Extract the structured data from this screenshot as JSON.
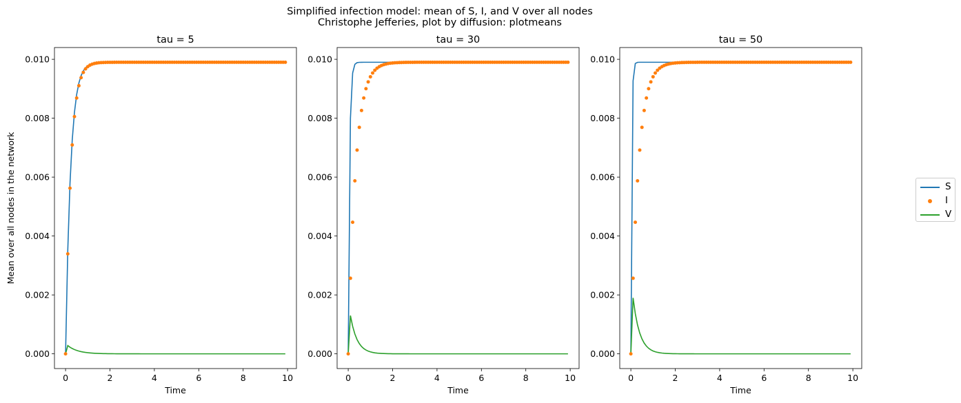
{
  "figure": {
    "title_line1": "Simplified infection model: mean of S, I, and V over all nodes",
    "title_line2": "Christophe Jefferies, plot by diffusion: plotmeans"
  },
  "legend": {
    "placement": "right",
    "entries": [
      "S",
      "I",
      "V"
    ]
  },
  "colors": {
    "S": "#1f77b4",
    "I": "#ff7f0e",
    "V": "#2ca02c"
  },
  "chart_data": [
    {
      "type": "line",
      "title": "tau = 5",
      "xlabel": "Time",
      "ylabel": "Mean over all nodes in the network",
      "xlim": [
        -0.5,
        10.4
      ],
      "ylim": [
        -0.0005,
        0.0104
      ],
      "xticks": [
        0,
        2,
        4,
        6,
        8,
        10
      ],
      "yticks": [
        0.0,
        0.002,
        0.004,
        0.006,
        0.008,
        0.01
      ],
      "tau": 5,
      "v_peak": 0.00028,
      "series": [
        {
          "name": "S",
          "style": "line"
        },
        {
          "name": "I",
          "style": "markers"
        },
        {
          "name": "V",
          "style": "line"
        }
      ],
      "x_range": [
        0,
        9.9
      ],
      "x_step": 0.1,
      "plateau": 0.0099
    },
    {
      "type": "line",
      "title": "tau = 30",
      "xlabel": "Time",
      "ylabel": "",
      "xlim": [
        -0.5,
        10.4
      ],
      "ylim": [
        -0.0005,
        0.0104
      ],
      "xticks": [
        0,
        2,
        4,
        6,
        8,
        10
      ],
      "yticks": [
        0.0,
        0.002,
        0.004,
        0.006,
        0.008,
        0.01
      ],
      "tau": 30,
      "v_peak": 0.0013,
      "series": [
        {
          "name": "S",
          "style": "line"
        },
        {
          "name": "I",
          "style": "markers"
        },
        {
          "name": "V",
          "style": "line"
        }
      ],
      "x_range": [
        0,
        9.9
      ],
      "x_step": 0.1,
      "plateau": 0.0099
    },
    {
      "type": "line",
      "title": "tau = 50",
      "xlabel": "Time",
      "ylabel": "",
      "xlim": [
        -0.5,
        10.4
      ],
      "ylim": [
        -0.0005,
        0.0104
      ],
      "xticks": [
        0,
        2,
        4,
        6,
        8,
        10
      ],
      "yticks": [
        0.0,
        0.002,
        0.004,
        0.006,
        0.008,
        0.01
      ],
      "tau": 50,
      "v_peak": 0.0019,
      "series": [
        {
          "name": "S",
          "style": "line"
        },
        {
          "name": "I",
          "style": "markers"
        },
        {
          "name": "V",
          "style": "line"
        }
      ],
      "x_range": [
        0,
        9.9
      ],
      "x_step": 0.1,
      "plateau": 0.0099
    }
  ]
}
